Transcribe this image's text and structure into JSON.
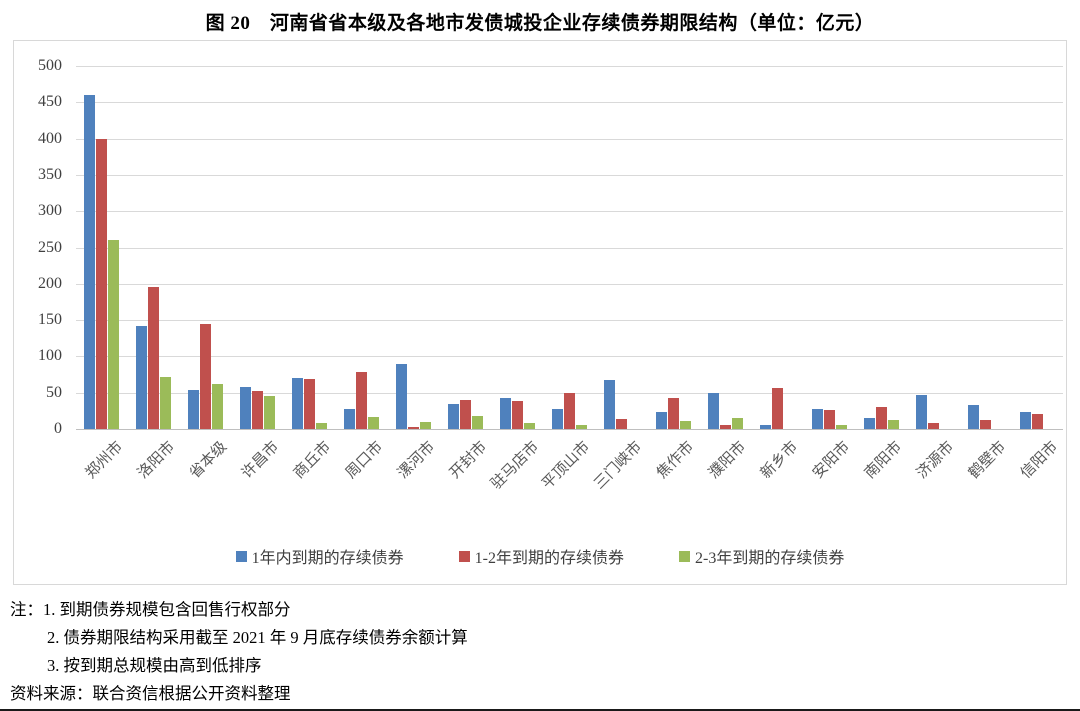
{
  "title": "图 20　河南省省本级及各地市发债城投企业存续债券期限结构（单位：亿元）",
  "chart_data": {
    "type": "bar",
    "title": "图 20　河南省省本级及各地市发债城投企业存续债券期限结构（单位：亿元）",
    "unit": "亿元",
    "categories": [
      "郑州市",
      "洛阳市",
      "省本级",
      "许昌市",
      "商丘市",
      "周口市",
      "漯河市",
      "开封市",
      "驻马店市",
      "平顶山市",
      "三门峡市",
      "焦作市",
      "濮阳市",
      "新乡市",
      "安阳市",
      "南阳市",
      "济源市",
      "鹤壁市",
      "信阳市"
    ],
    "series": [
      {
        "name": "1年内到期的存续债券",
        "color": "#4F81BD",
        "values": [
          460,
          142,
          54,
          58,
          70,
          28,
          90,
          35,
          43,
          28,
          67,
          24,
          50,
          5,
          28,
          15,
          47,
          33,
          23
        ]
      },
      {
        "name": "1-2年到期的存续债券",
        "color": "#C0504D",
        "values": [
          400,
          195,
          145,
          53,
          69,
          78,
          3,
          40,
          39,
          50,
          14,
          43,
          5,
          57,
          26,
          31,
          8,
          13,
          21
        ]
      },
      {
        "name": "2-3年到期的存续债券",
        "color": "#9BBB59",
        "values": [
          260,
          72,
          62,
          46,
          8,
          17,
          10,
          18,
          8,
          6,
          0,
          11,
          15,
          0,
          5,
          12,
          0,
          0,
          0
        ]
      }
    ],
    "ylim": [
      0,
      500
    ],
    "ytick_step": 50,
    "yticks": [
      500,
      450,
      400,
      350,
      300,
      250,
      200,
      150,
      100,
      50,
      0
    ],
    "grid": true,
    "legend_position": "bottom",
    "gridline_color": "#d9d9d9",
    "frame_border_color": "#d8d8d8"
  },
  "notes": {
    "prefix": "注：",
    "items": [
      "1. 到期债券规模包含回售行权部分",
      "2. 债券期限结构采用截至 2021 年 9 月底存续债券余额计算",
      "3. 按到期总规模由高到低排序"
    ],
    "source": "资料来源：联合资信根据公开资料整理"
  }
}
